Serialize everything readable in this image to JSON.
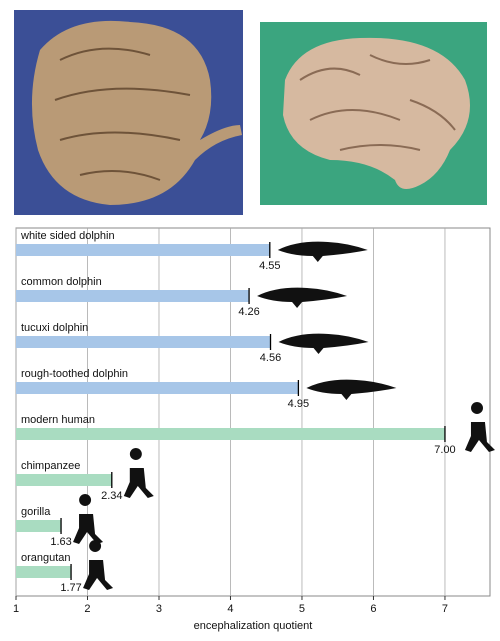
{
  "chart_data": {
    "type": "barh",
    "categories": [
      "white sided dolphin",
      "common dolphin",
      "tucuxi dolphin",
      "rough-toothed dolphin",
      "modern human",
      "chimpanzee",
      "gorilla",
      "orangutan"
    ],
    "values": [
      4.55,
      4.26,
      4.56,
      4.95,
      7.0,
      2.34,
      1.63,
      1.77
    ],
    "value_labels": [
      "4.55",
      "4.26",
      "4.56",
      "4.95",
      "7.00",
      "2.34",
      "1.63",
      "1.77"
    ],
    "colors": [
      "#a7c6e8",
      "#a7c6e8",
      "#a7c6e8",
      "#a7c6e8",
      "#a9dcc1",
      "#a9dcc1",
      "#a9dcc1",
      "#a9dcc1"
    ],
    "xlabel": "encephalization quotient",
    "xlim": [
      1,
      7.63
    ],
    "xticks": [
      1,
      2,
      3,
      4,
      5,
      6,
      7
    ],
    "grid": true
  }
}
